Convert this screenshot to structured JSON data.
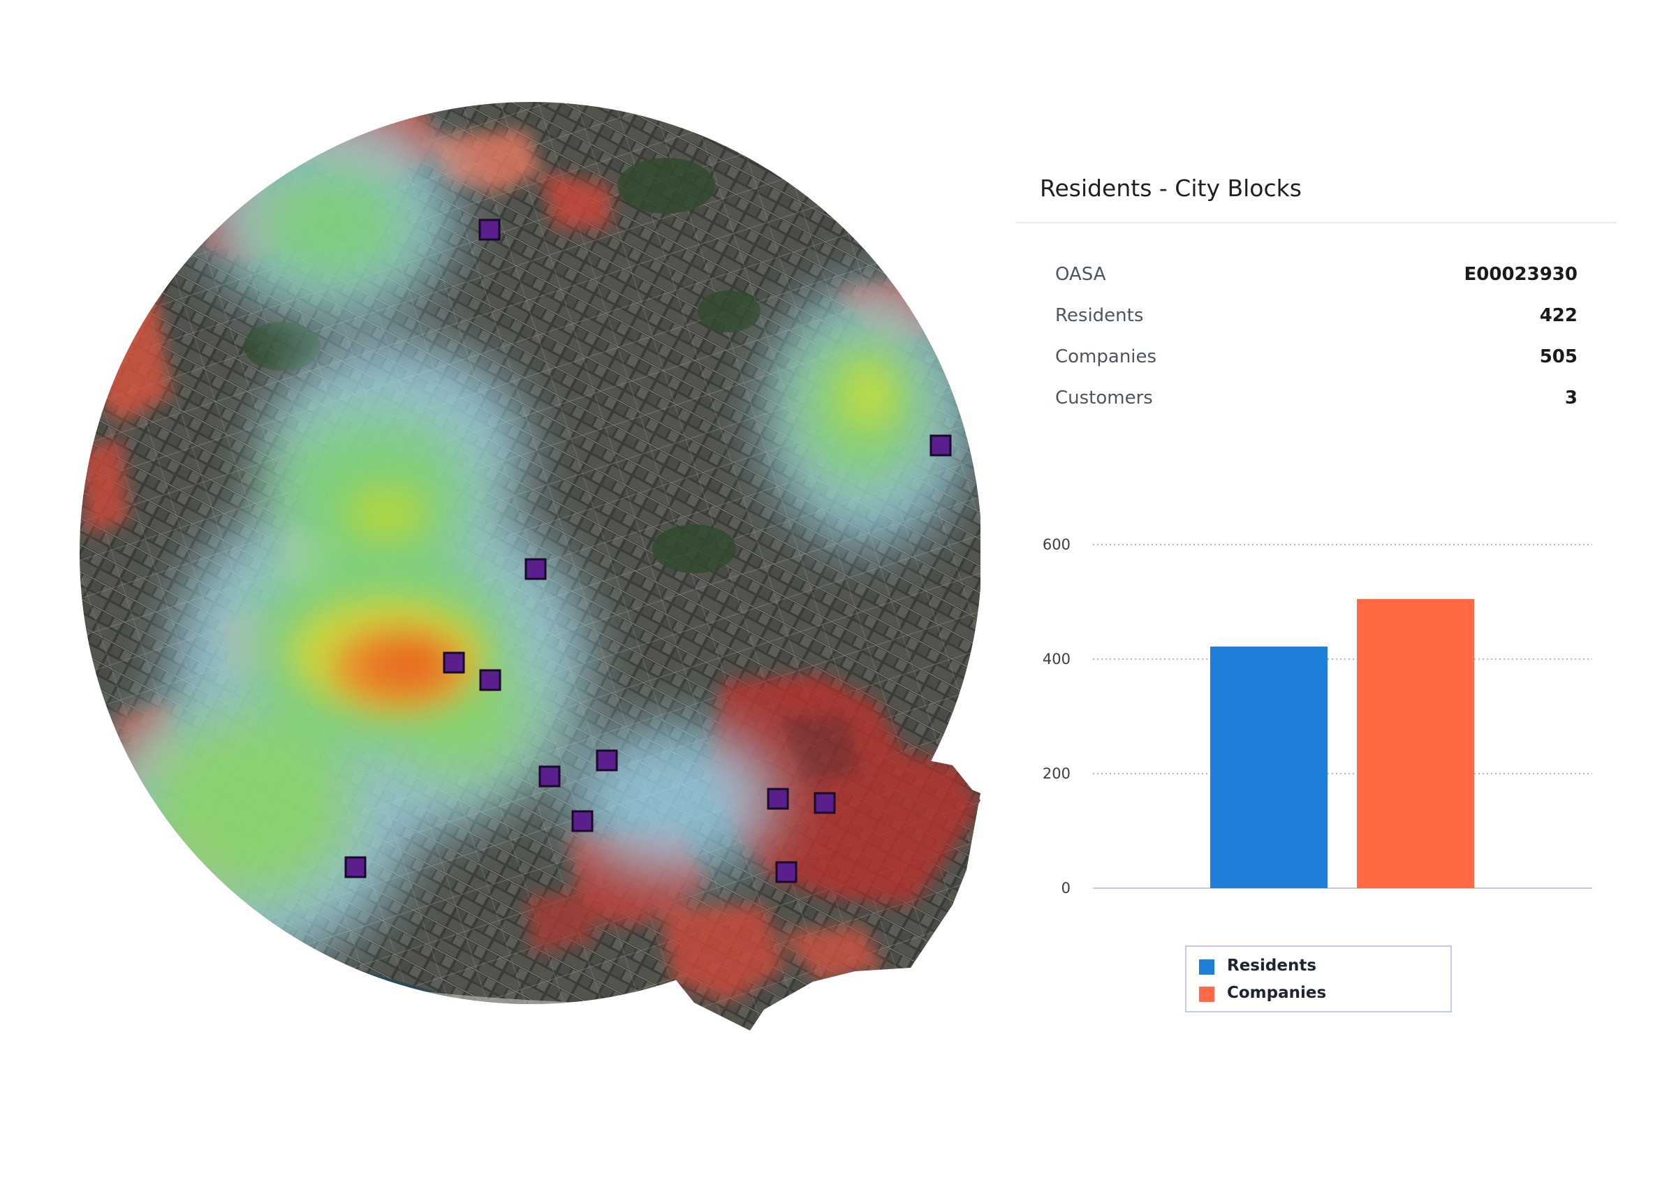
{
  "map": {
    "style": "satellite imagery with heatmap overlay",
    "heat_colors": [
      "#9fd8f0",
      "#7dd36a",
      "#d8d836",
      "#f07a28",
      "#c83a32"
    ],
    "marker_color": "#5a1f8c",
    "marker_count": 13
  },
  "panel": {
    "title": "Residents - City Blocks",
    "rows": [
      {
        "label": "OASA",
        "value": "E00023930"
      },
      {
        "label": "Residents",
        "value": "422"
      },
      {
        "label": "Companies",
        "value": "505"
      },
      {
        "label": "Customers",
        "value": "3"
      }
    ]
  },
  "chart_data": {
    "type": "bar",
    "categories": [
      "Residents",
      "Companies"
    ],
    "values": [
      422,
      505
    ],
    "colors": [
      "#1e7fd8",
      "#ff6a45"
    ],
    "yticks": [
      0,
      200,
      400,
      600
    ],
    "ylim": [
      0,
      600
    ],
    "grid": true,
    "legend_position": "bottom",
    "legend": [
      "Residents",
      "Companies"
    ]
  },
  "legend": [
    {
      "label": "Residents",
      "color": "#1e7fd8"
    },
    {
      "label": "Companies",
      "color": "#ff6a45"
    }
  ]
}
